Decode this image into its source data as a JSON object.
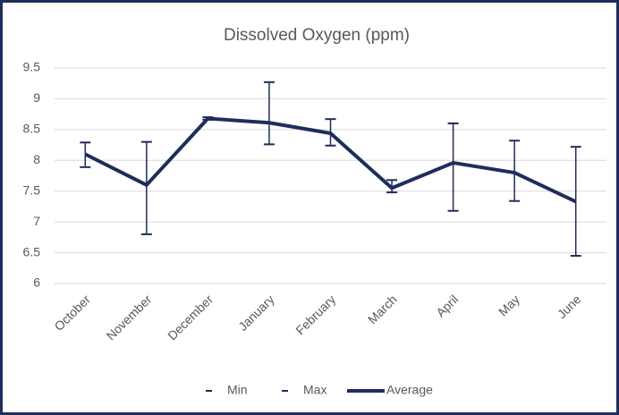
{
  "chart_data": {
    "type": "line",
    "title": "Dissolved Oxygen (ppm)",
    "categories": [
      "October",
      "November",
      "December",
      "January",
      "February",
      "March",
      "April",
      "May",
      "June"
    ],
    "series": [
      {
        "name": "Min",
        "color": "#1f2d5c",
        "values": [
          7.89,
          6.8,
          8.66,
          8.26,
          8.24,
          7.48,
          7.18,
          7.34,
          6.45
        ]
      },
      {
        "name": "Max",
        "color": "#1f2d5c",
        "values": [
          8.29,
          8.3,
          8.7,
          9.27,
          8.67,
          7.68,
          8.6,
          8.32,
          8.22
        ]
      },
      {
        "name": "Average",
        "color": "#1f2d5c",
        "values": [
          8.1,
          7.6,
          8.68,
          8.61,
          8.44,
          7.55,
          7.96,
          7.8,
          7.33
        ]
      }
    ],
    "ylim": [
      6,
      9.5
    ],
    "yticks": [
      6,
      6.5,
      7,
      7.5,
      8,
      8.5,
      9,
      9.5
    ],
    "grid": true,
    "legend": "bottom"
  }
}
